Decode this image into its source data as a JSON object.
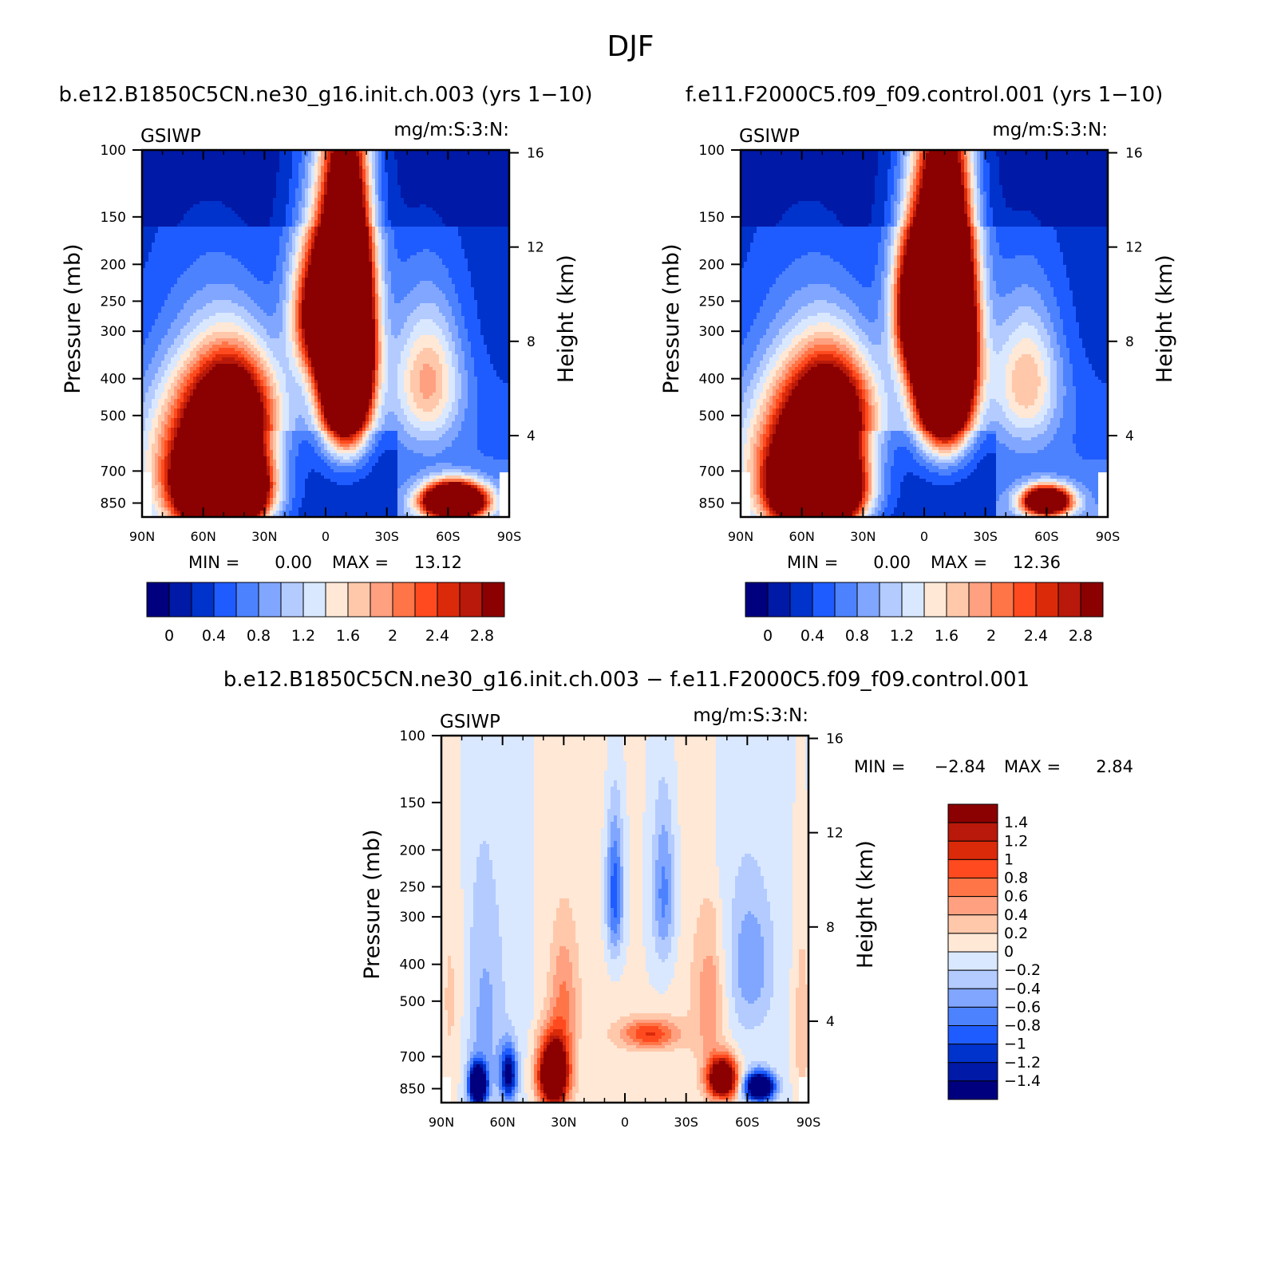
{
  "page_title": "DJF",
  "chart_data": [
    {
      "type": "heatmap",
      "id": "panel1",
      "title": "b.e12.B1850C5CN.ne30_g16.init.ch.003 (yrs 1−10)",
      "left_label": "GSIWP",
      "right_label": "mg/m:S:3:N:",
      "ylabel": "Pressure (mb)",
      "ylabel_right": "Height (km)",
      "x_ticks": [
        "90N",
        "60N",
        "30N",
        "0",
        "30S",
        "60S",
        "90S"
      ],
      "y_ticks": [
        "100",
        "150",
        "200",
        "250",
        "300",
        "400",
        "500",
        "700",
        "850"
      ],
      "y_ticks_right": [
        "16",
        "12",
        "8",
        "4"
      ],
      "stats": {
        "min_label": "MIN =",
        "min": "0.00",
        "max_label": "MAX =",
        "max": "13.12"
      },
      "colorbar_labels": [
        "0",
        "0.4",
        "0.8",
        "1.2",
        "1.6",
        "2",
        "2.4",
        "2.8"
      ],
      "colorbar_levels": [
        0,
        0.2,
        0.4,
        0.6,
        0.8,
        1.0,
        1.2,
        1.4,
        1.6,
        1.8,
        2.0,
        2.2,
        2.4,
        2.6,
        2.8
      ],
      "blobs": [
        {
          "lat": 50,
          "p": 780,
          "amp": 9.0,
          "sx": 13,
          "sy": 130
        },
        {
          "lat": 45,
          "p": 470,
          "amp": 2.6,
          "sx": 14,
          "sy": 110
        },
        {
          "lat": 60,
          "p": 600,
          "amp": 2.0,
          "sx": 20,
          "sy": 200
        },
        {
          "lat": -10,
          "p": 330,
          "amp": 8.5,
          "sx": 8,
          "sy": 150
        },
        {
          "lat": 5,
          "p": 270,
          "amp": 2.2,
          "sx": 8,
          "sy": 70
        },
        {
          "lat": -5,
          "p": 240,
          "amp": 1.2,
          "sx": 14,
          "sy": 160
        },
        {
          "lat": -50,
          "p": 400,
          "amp": 1.5,
          "sx": 12,
          "sy": 120
        },
        {
          "lat": -63,
          "p": 840,
          "amp": 6.0,
          "sx": 10,
          "sy": 60
        }
      ]
    },
    {
      "type": "heatmap",
      "id": "panel2",
      "title": "f.e11.F2000C5.f09_f09.control.001 (yrs 1−10)",
      "left_label": "GSIWP",
      "right_label": "mg/m:S:3:N:",
      "ylabel": "Pressure (mb)",
      "ylabel_right": "Height (km)",
      "x_ticks": [
        "90N",
        "60N",
        "30N",
        "0",
        "30S",
        "60S",
        "90S"
      ],
      "y_ticks": [
        "100",
        "150",
        "200",
        "250",
        "300",
        "400",
        "500",
        "700",
        "850"
      ],
      "y_ticks_right": [
        "16",
        "12",
        "8",
        "4"
      ],
      "stats": {
        "min_label": "MIN =",
        "min": "0.00",
        "max_label": "MAX =",
        "max": "12.36"
      },
      "colorbar_labels": [
        "0",
        "0.4",
        "0.8",
        "1.2",
        "1.6",
        "2",
        "2.4",
        "2.8"
      ],
      "colorbar_levels": [
        0,
        0.2,
        0.4,
        0.6,
        0.8,
        1.0,
        1.2,
        1.4,
        1.6,
        1.8,
        2.0,
        2.2,
        2.4,
        2.6,
        2.8
      ],
      "blobs": [
        {
          "lat": 52,
          "p": 780,
          "amp": 8.5,
          "sx": 13,
          "sy": 130
        },
        {
          "lat": 45,
          "p": 470,
          "amp": 2.5,
          "sx": 14,
          "sy": 110
        },
        {
          "lat": 60,
          "p": 600,
          "amp": 2.0,
          "sx": 20,
          "sy": 200
        },
        {
          "lat": -10,
          "p": 330,
          "amp": 9.0,
          "sx": 9,
          "sy": 150
        },
        {
          "lat": 5,
          "p": 260,
          "amp": 2.6,
          "sx": 7,
          "sy": 70
        },
        {
          "lat": -5,
          "p": 240,
          "amp": 1.2,
          "sx": 14,
          "sy": 160
        },
        {
          "lat": -50,
          "p": 400,
          "amp": 1.4,
          "sx": 12,
          "sy": 120
        },
        {
          "lat": -60,
          "p": 840,
          "amp": 4.5,
          "sx": 8,
          "sy": 50
        }
      ]
    },
    {
      "type": "heatmap",
      "id": "panel3",
      "title": "b.e12.B1850C5CN.ne30_g16.init.ch.003 − f.e11.F2000C5.f09_f09.control.001",
      "left_label": "GSIWP",
      "right_label": "mg/m:S:3:N:",
      "ylabel": "Pressure (mb)",
      "ylabel_right": "Height (km)",
      "x_ticks": [
        "90N",
        "60N",
        "30N",
        "0",
        "30S",
        "60S",
        "90S"
      ],
      "y_ticks": [
        "100",
        "150",
        "200",
        "250",
        "300",
        "400",
        "500",
        "700",
        "850"
      ],
      "y_ticks_right": [
        "16",
        "12",
        "8",
        "4"
      ],
      "stats": {
        "min_label": "MIN =",
        "min": "−2.84",
        "max_label": "MAX =",
        "max": "2.84"
      },
      "colorbar_labels": [
        "1.4",
        "1.2",
        "1",
        "0.8",
        "0.6",
        "0.4",
        "0.2",
        "0",
        "−0.2",
        "−0.4",
        "−0.6",
        "−0.8",
        "−1",
        "−1.2",
        "−1.4"
      ],
      "colorbar_levels": [
        -1.4,
        -1.2,
        -1.0,
        -0.8,
        -0.6,
        -0.4,
        -0.2,
        0,
        0.2,
        0.4,
        0.6,
        0.8,
        1.0,
        1.2,
        1.4
      ],
      "blobs": [
        {
          "lat": 35,
          "p": 780,
          "amp": 2.8,
          "sx": 5,
          "sy": 110
        },
        {
          "lat": 30,
          "p": 500,
          "amp": 0.6,
          "sx": 5,
          "sy": 150
        },
        {
          "lat": -48,
          "p": 800,
          "amp": 2.6,
          "sx": 5,
          "sy": 70
        },
        {
          "lat": -42,
          "p": 500,
          "amp": 0.5,
          "sx": 6,
          "sy": 150
        },
        {
          "lat": -12,
          "p": 610,
          "amp": 1.0,
          "sx": 10,
          "sy": 40
        },
        {
          "lat": 72,
          "p": 830,
          "amp": -2.6,
          "sx": 3,
          "sy": 70
        },
        {
          "lat": 57,
          "p": 780,
          "amp": -1.5,
          "sx": 3,
          "sy": 90
        },
        {
          "lat": 68,
          "p": 550,
          "amp": -0.4,
          "sx": 7,
          "sy": 250
        },
        {
          "lat": -66,
          "p": 840,
          "amp": -2.5,
          "sx": 5,
          "sy": 50
        },
        {
          "lat": -62,
          "p": 400,
          "amp": -0.5,
          "sx": 8,
          "sy": 120
        },
        {
          "lat": 5,
          "p": 260,
          "amp": -1.0,
          "sx": 3,
          "sy": 80
        },
        {
          "lat": -19,
          "p": 260,
          "amp": -0.7,
          "sx": 4,
          "sy": 90
        },
        {
          "lat": 85,
          "p": 500,
          "amp": 0.3,
          "sx": 5,
          "sy": 300
        },
        {
          "lat": -87,
          "p": 600,
          "amp": 0.4,
          "sx": 3,
          "sy": 250
        }
      ]
    }
  ]
}
